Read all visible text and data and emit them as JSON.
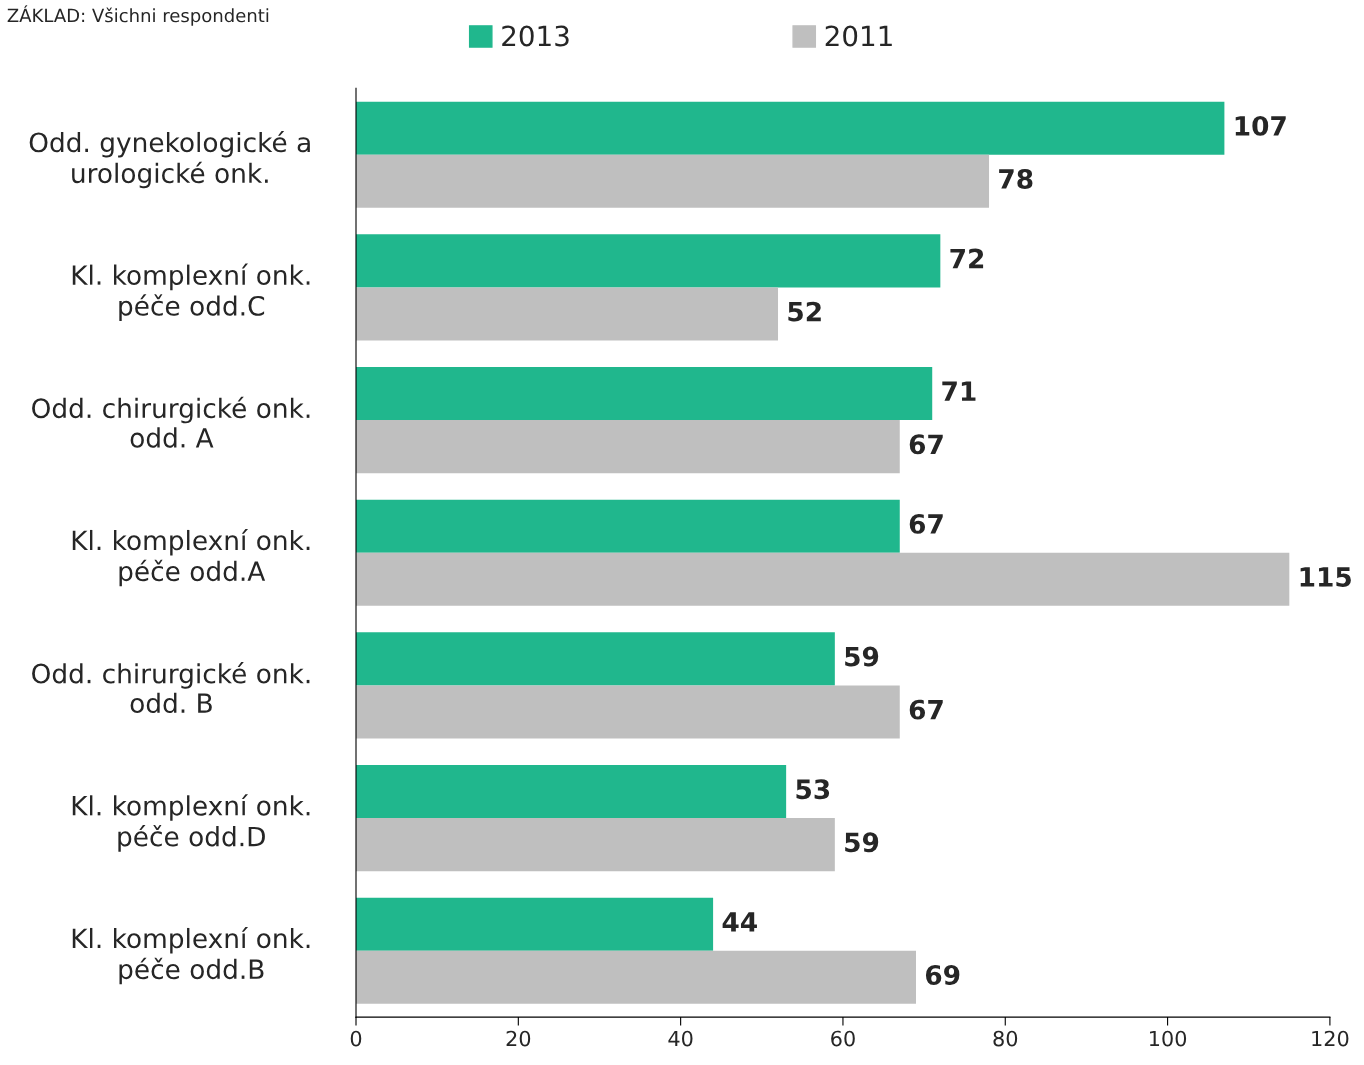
{
  "chart_data": {
    "type": "bar",
    "orientation": "horizontal",
    "categories": [
      "Odd. gynekologické a\nurologické onk.",
      "Kl. komplexní onk.\npéče odd.C",
      "Odd. chirurgické onk.\nodd. A",
      "Kl. komplexní onk.\npéče odd.A",
      "Odd. chirurgické onk.\nodd. B",
      "Kl. komplexní onk.\npéče odd.D",
      "Kl. komplexní onk.\npéče odd.B"
    ],
    "series": [
      {
        "name": "2013",
        "color": "#20b78d",
        "values": [
          107,
          72,
          71,
          67,
          59,
          53,
          44
        ]
      },
      {
        "name": "2011",
        "color": "#bfbfbf",
        "values": [
          78,
          52,
          67,
          115,
          67,
          59,
          69
        ]
      }
    ],
    "xlim": [
      0,
      120
    ],
    "xticks": [
      0,
      20,
      40,
      60,
      80,
      100,
      120
    ],
    "data_labels": true,
    "grid": false,
    "legend": "top",
    "annotations": [
      "ZÁKLAD: Všichni respondenti"
    ]
  }
}
